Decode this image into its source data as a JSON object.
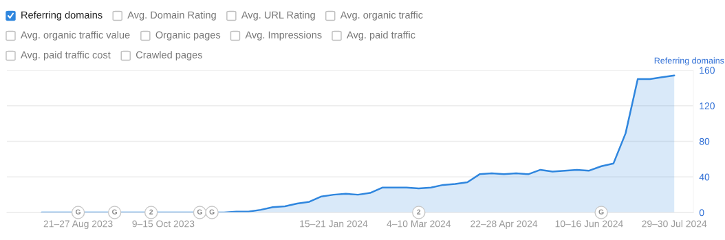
{
  "chart_data": {
    "type": "area",
    "ylabel": "Referring domains",
    "legend": "top left",
    "grid": "y",
    "marker": "none",
    "line_style": "solid",
    "x": [
      "2023-07-31",
      "2023-08-07",
      "2023-08-14",
      "2023-08-21",
      "2023-08-28",
      "2023-09-04",
      "2023-09-11",
      "2023-09-18",
      "2023-09-25",
      "2023-10-02",
      "2023-10-09",
      "2023-10-16",
      "2023-10-23",
      "2023-10-30",
      "2023-11-06",
      "2023-11-13",
      "2023-11-20",
      "2023-11-27",
      "2023-12-04",
      "2023-12-11",
      "2023-12-18",
      "2023-12-25",
      "2024-01-01",
      "2024-01-08",
      "2024-01-15",
      "2024-01-22",
      "2024-01-29",
      "2024-02-05",
      "2024-02-12",
      "2024-02-19",
      "2024-02-26",
      "2024-03-04",
      "2024-03-11",
      "2024-03-18",
      "2024-03-25",
      "2024-04-01",
      "2024-04-08",
      "2024-04-15",
      "2024-04-22",
      "2024-04-29",
      "2024-05-06",
      "2024-05-13",
      "2024-05-20",
      "2024-05-27",
      "2024-06-03",
      "2024-06-10",
      "2024-06-17",
      "2024-06-24",
      "2024-07-01",
      "2024-07-08",
      "2024-07-15",
      "2024-07-22",
      "2024-07-29"
    ],
    "series": [
      {
        "name": "Referring domains",
        "color": "#2f86de",
        "values": [
          0,
          0,
          0,
          0,
          0,
          0,
          0,
          0,
          0,
          0,
          0,
          0,
          0,
          0,
          0,
          0,
          1,
          1,
          3,
          6,
          7,
          10,
          12,
          18,
          20,
          21,
          20,
          22,
          28,
          28,
          28,
          27,
          28,
          31,
          32,
          34,
          43,
          44,
          43,
          44,
          43,
          48,
          46,
          47,
          48,
          47,
          52,
          55,
          89,
          150,
          150,
          152,
          154
        ]
      }
    ],
    "xlim": [
      "2023-07-11",
      "2024-08-09"
    ],
    "xticks": [
      {
        "value": "2023-08-21",
        "label": "21–27 Aug 2023"
      },
      {
        "value": "2023-10-09",
        "label": "9–15 Oct 2023"
      },
      {
        "value": "2024-01-15",
        "label": "15–21 Jan 2024"
      },
      {
        "value": "2024-03-04",
        "label": "4–10 Mar 2024"
      },
      {
        "value": "2024-04-22",
        "label": "22–28 Apr 2024"
      },
      {
        "value": "2024-06-10",
        "label": "10–16 Jun 2024"
      },
      {
        "value": "2024-07-29",
        "label": "29–30 Jul 2024"
      }
    ],
    "ylim": [
      0,
      160
    ],
    "yticks": [
      0,
      40,
      80,
      120,
      160
    ],
    "annotations": [
      "Avg. Domain Rating",
      "Avg. URL Rating",
      "Avg. organic traffic",
      "Avg. organic traffic value",
      "Organic pages",
      "Avg. Impressions",
      "Avg. paid traffic",
      "Avg. paid traffic cost",
      "Crawled pages",
      {
        "text": "G",
        "x": "2023-08-21",
        "y": 0
      },
      {
        "text": "G",
        "x": "2023-09-11",
        "y": 0
      },
      {
        "text": "2",
        "x": "2023-10-02",
        "y": 0
      },
      {
        "text": "G",
        "x": "2023-10-30",
        "y": 0
      },
      {
        "text": "G",
        "x": "2023-11-06",
        "y": 0
      },
      {
        "text": "2",
        "x": "2024-03-04",
        "y": 0
      },
      {
        "text": "G",
        "x": "2024-06-17",
        "y": 0
      }
    ]
  }
}
